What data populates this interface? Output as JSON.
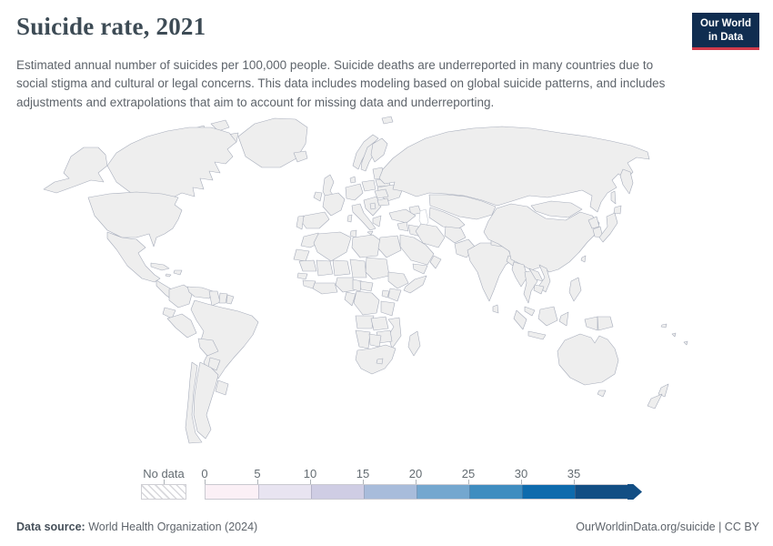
{
  "header": {
    "title": "Suicide rate, 2021",
    "subtitle": "Estimated annual number of suicides per 100,000 people. Suicide deaths are underreported in many countries due to social stigma and cultural or legal concerns. This data includes modeling based on global suicide patterns, and includes adjustments and extrapolations that aim to account for missing data and underreporting.",
    "logo": {
      "line1": "Our World",
      "line2": "in Data",
      "bg": "#102d50",
      "accent": "#d13b4b"
    }
  },
  "legend": {
    "no_data_label": "No data",
    "tick_labels": [
      "0",
      "5",
      "10",
      "15",
      "20",
      "25",
      "30",
      "35"
    ]
  },
  "footer": {
    "source_label": "Data source:",
    "source_value": " World Health Organization (2024)",
    "right_text": "OurWorldinData.org/suicide | CC BY"
  },
  "chart_data": {
    "type": "choropleth",
    "title": "Suicide rate, 2021",
    "unit": "estimated suicides per 100,000 people",
    "bins": [
      0,
      5,
      10,
      15,
      20,
      25,
      30,
      35
    ],
    "bin_colors": [
      "#fbf0f6",
      "#e8e4f1",
      "#cfcde4",
      "#a8bcdb",
      "#74a7cf",
      "#3f8dc0",
      "#0e6bad",
      "#124e84"
    ],
    "no_data_style": "hatch",
    "regions": [
      {
        "id": "greenland",
        "color": "hatch"
      },
      {
        "id": "arctic-islands",
        "color": "#e8e4f1"
      },
      {
        "id": "alaska",
        "color": "#a3bcdb"
      },
      {
        "id": "canada",
        "color": "#e8e4f1"
      },
      {
        "id": "usa",
        "color": "#a3bcdb"
      },
      {
        "id": "mexico",
        "color": "#ece8f3"
      },
      {
        "id": "central-america",
        "color": "#f9eef4"
      },
      {
        "id": "cuba",
        "color": "#d8d5e9"
      },
      {
        "id": "hispaniola",
        "color": "#f7eef4"
      },
      {
        "id": "jamaica",
        "color": "#e8e4f0"
      },
      {
        "id": "colombia",
        "color": "#fdf2f7"
      },
      {
        "id": "venezuela",
        "color": "#f7eef4"
      },
      {
        "id": "guyana",
        "color": "#2a7fb8"
      },
      {
        "id": "suriname",
        "color": "#74a7cf"
      },
      {
        "id": "french-guiana",
        "color": "#f3ecf4"
      },
      {
        "id": "ecuador",
        "color": "#e6e2f0"
      },
      {
        "id": "peru",
        "color": "#fbf1f6"
      },
      {
        "id": "brazil",
        "color": "#e3e0ee"
      },
      {
        "id": "bolivia",
        "color": "#fbf1f6"
      },
      {
        "id": "paraguay",
        "color": "#e3e0ee"
      },
      {
        "id": "uruguay",
        "color": "#7fb0d4"
      },
      {
        "id": "argentina",
        "color": "#dedcec"
      },
      {
        "id": "chile",
        "color": "#dedcec"
      },
      {
        "id": "iceland",
        "color": "#cfcde4"
      },
      {
        "id": "uk",
        "color": "#f9eff5"
      },
      {
        "id": "ireland",
        "color": "#efe9f3"
      },
      {
        "id": "norway",
        "color": "#c5c9e2"
      },
      {
        "id": "sweden",
        "color": "#cdd0e6"
      },
      {
        "id": "finland",
        "color": "#b5c3de"
      },
      {
        "id": "denmark",
        "color": "#cfcde4"
      },
      {
        "id": "baltics",
        "color": "#8fb4d6"
      },
      {
        "id": "belarus",
        "color": "#94b7d8"
      },
      {
        "id": "ukraine",
        "color": "#94b7d8"
      },
      {
        "id": "poland",
        "color": "#b5c3de"
      },
      {
        "id": "central-europe",
        "color": "#c9cce3"
      },
      {
        "id": "france",
        "color": "#8fb4d6"
      },
      {
        "id": "spain",
        "color": "#eee9f3"
      },
      {
        "id": "portugal",
        "color": "#d6d3e8"
      },
      {
        "id": "italy",
        "color": "#f9eff5"
      },
      {
        "id": "sardinia",
        "color": "#f9eff5"
      },
      {
        "id": "sicily",
        "color": "#f9eff5"
      },
      {
        "id": "balkans",
        "color": "#cfcde4"
      },
      {
        "id": "serbia",
        "color": "#5e9cca"
      },
      {
        "id": "romania",
        "color": "#d6d3e8"
      },
      {
        "id": "bulgaria",
        "color": "#cfcde4"
      },
      {
        "id": "greece",
        "color": "#f3ecf4"
      },
      {
        "id": "russia",
        "color": "#82aed2"
      },
      {
        "id": "kamchatka",
        "color": "#82aed2"
      },
      {
        "id": "sakhalin",
        "color": "#82aed2"
      },
      {
        "id": "svalbard",
        "color": "#dcd9ec"
      },
      {
        "id": "kazakhstan",
        "color": "#c5c9e2"
      },
      {
        "id": "uzbekistan-turkmenistan",
        "color": "#d6d3e8"
      },
      {
        "id": "caucasus",
        "color": "#e8e4f0"
      },
      {
        "id": "turkey",
        "color": "#f3ecf4"
      },
      {
        "id": "levant",
        "color": "#f7eef4"
      },
      {
        "id": "iraq",
        "color": "#f9eff5"
      },
      {
        "id": "iran",
        "color": "#f3ecf4"
      },
      {
        "id": "saudi-arabia",
        "color": "#fdf3f7"
      },
      {
        "id": "yemen",
        "color": "#d8d7ea"
      },
      {
        "id": "oman",
        "color": "#f7eef4"
      },
      {
        "id": "afghanistan",
        "color": "#eee9f3"
      },
      {
        "id": "pakistan",
        "color": "#e8e4f0"
      },
      {
        "id": "india",
        "color": "#bdc5e0"
      },
      {
        "id": "nepal",
        "color": "#c9cce3"
      },
      {
        "id": "bangladesh",
        "color": "#e3e0ee"
      },
      {
        "id": "sri-lanka",
        "color": "#bdc5e0"
      },
      {
        "id": "china",
        "color": "#e3e0ee"
      },
      {
        "id": "mongolia",
        "color": "#9fbcda"
      },
      {
        "id": "north-korea",
        "color": "#d6d3e8"
      },
      {
        "id": "south-korea",
        "color": "#2272ae"
      },
      {
        "id": "japan",
        "color": "#a3bcdb"
      },
      {
        "id": "taiwan",
        "color": "#e8e4f0"
      },
      {
        "id": "myanmar",
        "color": "#e3e0ee"
      },
      {
        "id": "thailand",
        "color": "#8fb2d5"
      },
      {
        "id": "laos",
        "color": "#cfcde4"
      },
      {
        "id": "vietnam",
        "color": "#d8d6e9"
      },
      {
        "id": "cambodia",
        "color": "#e8e4f0"
      },
      {
        "id": "malaysia",
        "color": "#f3ecf4"
      },
      {
        "id": "sumatra",
        "color": "#fdf2f7"
      },
      {
        "id": "java",
        "color": "#fdf2f7"
      },
      {
        "id": "borneo",
        "color": "#fdf2f7"
      },
      {
        "id": "sulawesi",
        "color": "#fdf2f7"
      },
      {
        "id": "philippines",
        "color": "#fdf2f7"
      },
      {
        "id": "new-guinea-west",
        "color": "#fdf2f7"
      },
      {
        "id": "papua-new-guinea",
        "color": "#f9eff5"
      },
      {
        "id": "solomon",
        "color": "#5e9cca"
      },
      {
        "id": "fiji-group",
        "color": "#cfcde4"
      },
      {
        "id": "morocco",
        "color": "#fdf2f7"
      },
      {
        "id": "western-sahara",
        "color": "hatch"
      },
      {
        "id": "algeria",
        "color": "#fdf2f7"
      },
      {
        "id": "tunisia",
        "color": "#f7eef4"
      },
      {
        "id": "libya",
        "color": "#fbf1f6"
      },
      {
        "id": "egypt",
        "color": "#f9eff5"
      },
      {
        "id": "mauritania",
        "color": "#fbf1f6"
      },
      {
        "id": "mali",
        "color": "#fdf2f7"
      },
      {
        "id": "niger",
        "color": "#fdf2f7"
      },
      {
        "id": "chad",
        "color": "#fbf1f6"
      },
      {
        "id": "sudan",
        "color": "#fbf1f6"
      },
      {
        "id": "senegal",
        "color": "#e0ddee"
      },
      {
        "id": "guinea",
        "color": "#fdf2f7"
      },
      {
        "id": "west-africa-coast",
        "color": "#fdf2f7"
      },
      {
        "id": "nigeria",
        "color": "#fbf1f6"
      },
      {
        "id": "cameroon",
        "color": "#e8e4f0"
      },
      {
        "id": "central-african-republic",
        "color": "#f7eef4"
      },
      {
        "id": "ethiopia",
        "color": "#d3d2e7"
      },
      {
        "id": "somalia",
        "color": "#d3d2e7"
      },
      {
        "id": "kenya",
        "color": "#f7eef4"
      },
      {
        "id": "uganda",
        "color": "#f3ecf4"
      },
      {
        "id": "drc",
        "color": "#ece8f3"
      },
      {
        "id": "gabon-congo",
        "color": "#e3e0ee"
      },
      {
        "id": "tanzania",
        "color": "#e3e0ee"
      },
      {
        "id": "angola",
        "color": "#e8e5f1"
      },
      {
        "id": "zambia",
        "color": "#e0ddee"
      },
      {
        "id": "mozambique",
        "color": "#c3cbe3"
      },
      {
        "id": "zimbabwe",
        "color": "#9cb9da"
      },
      {
        "id": "namibia",
        "color": "#e0ddee"
      },
      {
        "id": "botswana",
        "color": "#dcd9eb"
      },
      {
        "id": "south-africa",
        "color": "#4d94c8"
      },
      {
        "id": "lesotho",
        "color": "#174f80"
      },
      {
        "id": "madagascar",
        "color": "#dcd9eb"
      },
      {
        "id": "australia",
        "color": "#c5c9e2"
      },
      {
        "id": "tasmania",
        "color": "#c5c9e2"
      },
      {
        "id": "new-zealand-north",
        "color": "#c5c9e2"
      },
      {
        "id": "new-zealand-south",
        "color": "#c5c9e2"
      }
    ]
  }
}
